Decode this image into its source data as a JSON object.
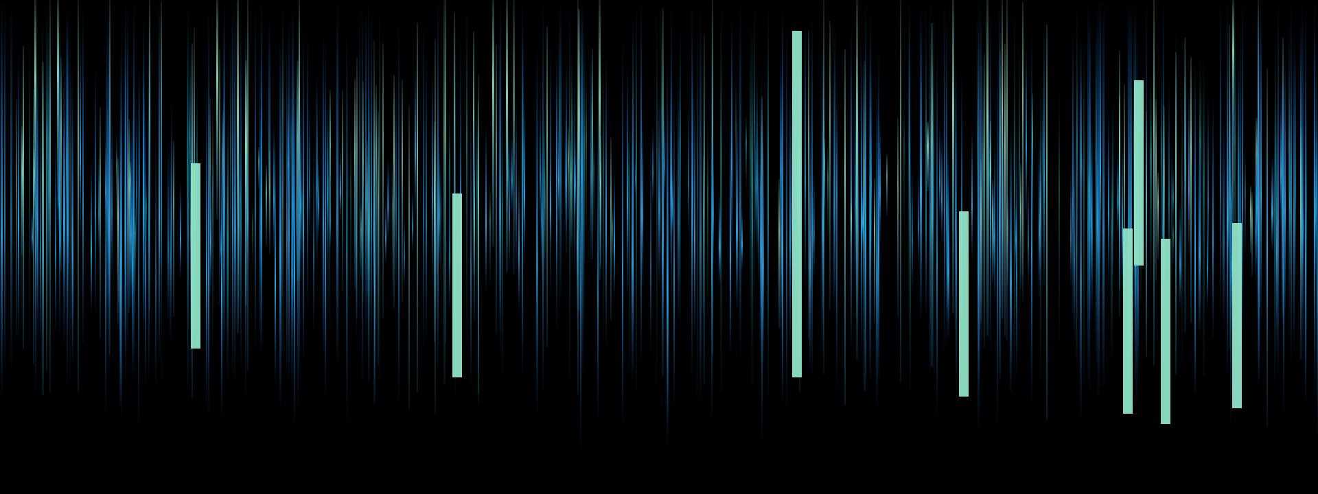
{
  "scene": {
    "description_tag": "abstract-light-streaks",
    "palette": {
      "background": "#000000",
      "deep_blue": "#0f4fa8",
      "cyan_blue": "#2aa6e6",
      "teal": "#1f8f9a",
      "mint": "#8fe3c7",
      "mint_bright": "#9ff0d2"
    }
  }
}
